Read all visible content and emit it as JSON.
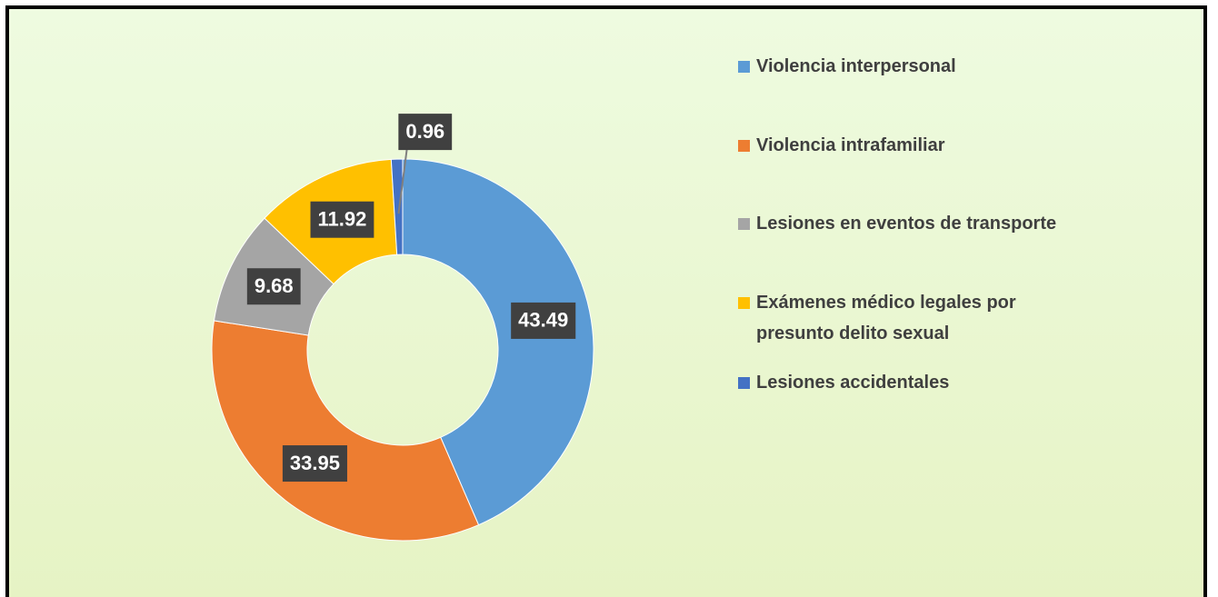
{
  "chart_data": {
    "type": "donut",
    "categories": [
      "Violencia interpersonal",
      "Violencia intrafamiliar",
      "Lesiones en eventos de transporte",
      "Exámenes médico legales por presunto delito sexual",
      "Lesiones accidentales"
    ],
    "values": [
      43.49,
      33.95,
      9.68,
      11.92,
      0.96
    ],
    "colors": [
      "#5b9bd5",
      "#ed7d31",
      "#a5a5a5",
      "#ffc000",
      "#4472c4"
    ],
    "legend": "right"
  }
}
